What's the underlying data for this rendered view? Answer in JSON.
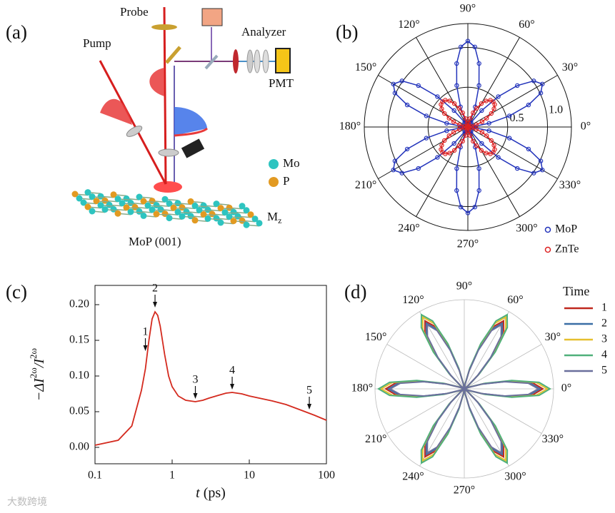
{
  "panels": {
    "a": {
      "label": "(a)",
      "probe": "Probe",
      "pump": "Pump",
      "analyzer": "Analyzer",
      "pmt": "PMT",
      "mo": "Mo",
      "p": "P",
      "m": "M",
      "m_sub": "z",
      "sample": "MoP (001)"
    },
    "b": {
      "label": "(b)",
      "type": "polar",
      "rlim": [
        0,
        1.3
      ],
      "rticks": [
        0.5,
        {
          "value": 1,
          "label": "1.0"
        }
      ],
      "angleticks": [
        {
          "value": 0,
          "label": "0°"
        },
        {
          "value": 30,
          "label": "30°"
        },
        {
          "value": 60,
          "label": "60°"
        },
        {
          "value": 90,
          "label": "90°"
        },
        {
          "value": 120,
          "label": "120°"
        },
        {
          "value": 150,
          "label": "150°"
        },
        {
          "value": 180,
          "label": "180°"
        },
        {
          "value": 210,
          "label": "210°"
        },
        {
          "value": 240,
          "label": "240°"
        },
        {
          "value": 270,
          "label": "270°"
        },
        {
          "value": 300,
          "label": "300°"
        },
        {
          "value": 330,
          "label": "330°"
        }
      ],
      "angles": [
        0,
        5,
        10,
        15,
        20,
        25,
        30,
        35,
        40,
        45,
        50,
        55,
        60,
        65,
        70,
        75,
        80,
        85,
        90,
        95,
        100,
        105,
        110,
        115,
        120,
        125,
        130,
        135,
        140,
        145,
        150,
        155,
        160,
        165,
        170,
        175,
        180,
        185,
        190,
        195,
        200,
        205,
        210,
        215,
        220,
        225,
        230,
        235,
        240,
        245,
        250,
        255,
        260,
        265,
        270,
        275,
        280,
        285,
        290,
        295,
        300,
        305,
        310,
        315,
        320,
        325,
        330,
        335,
        340,
        345,
        350,
        355
      ],
      "series": [
        {
          "name": "MoP",
          "color": "#2233bb",
          "values": [
            0,
            0.07,
            0.27,
            0.54,
            0.81,
            1.01,
            1.08,
            1.01,
            0.81,
            0.54,
            0.27,
            0.07,
            0,
            0.07,
            0.27,
            0.54,
            0.81,
            1.01,
            1.08,
            1.01,
            0.81,
            0.54,
            0.27,
            0.07,
            0,
            0.07,
            0.27,
            0.54,
            0.81,
            1.01,
            1.08,
            1.01,
            0.81,
            0.54,
            0.27,
            0.07,
            0,
            0.07,
            0.27,
            0.54,
            0.81,
            1.01,
            1.08,
            1.01,
            0.81,
            0.54,
            0.27,
            0.07,
            0,
            0.07,
            0.27,
            0.54,
            0.81,
            1.01,
            1.08,
            1.01,
            0.81,
            0.54,
            0.27,
            0.07,
            0,
            0.07,
            0.27,
            0.54,
            0.81,
            1.01,
            1.08,
            1.01,
            0.81,
            0.54,
            0.27,
            0.07
          ]
        },
        {
          "name": "ZnTe",
          "color": "#dd2222",
          "values": [
            0,
            0.01,
            0.05,
            0.11,
            0.19,
            0.26,
            0.34,
            0.4,
            0.44,
            0.45,
            0.44,
            0.4,
            0.34,
            0.26,
            0.19,
            0.11,
            0.05,
            0.01,
            0,
            0.01,
            0.05,
            0.11,
            0.19,
            0.26,
            0.34,
            0.4,
            0.44,
            0.45,
            0.44,
            0.4,
            0.34,
            0.26,
            0.19,
            0.11,
            0.05,
            0.01,
            0,
            0.01,
            0.05,
            0.11,
            0.19,
            0.26,
            0.34,
            0.4,
            0.44,
            0.45,
            0.44,
            0.4,
            0.34,
            0.26,
            0.19,
            0.11,
            0.05,
            0.01,
            0,
            0.01,
            0.05,
            0.11,
            0.19,
            0.26,
            0.34,
            0.4,
            0.44,
            0.45,
            0.44,
            0.4,
            0.34,
            0.26,
            0.19,
            0.11,
            0.05,
            0.01
          ]
        }
      ]
    },
    "c": {
      "label": "(c)",
      "type": "line",
      "xscale": "log",
      "color": "#d42a1e",
      "xlim": [
        0.1,
        100
      ],
      "xticks": [
        0.1,
        1,
        10,
        100
      ],
      "ylim": [
        -0.023,
        0.227
      ],
      "yticks": [
        {
          "value": 0,
          "label": "0.00"
        },
        0.05,
        {
          "value": 0.1,
          "label": "0.10"
        },
        0.15,
        {
          "value": 0.2,
          "label": "0.20"
        }
      ],
      "ylabel": [
        "−ΔI",
        "2ω",
        "/I",
        "2ω"
      ],
      "xlabel": [
        "t",
        " (ps)"
      ],
      "x": [
        0.1,
        0.2,
        0.3,
        0.4,
        0.45,
        0.5,
        0.55,
        0.6,
        0.65,
        0.7,
        0.8,
        0.9,
        1,
        1.2,
        1.5,
        2,
        2.5,
        3,
        4,
        5,
        6,
        8,
        10,
        20,
        30,
        50,
        70,
        100
      ],
      "values": [
        0.003,
        0.01,
        0.03,
        0.08,
        0.11,
        0.15,
        0.18,
        0.19,
        0.185,
        0.17,
        0.13,
        0.1,
        0.085,
        0.072,
        0.066,
        0.064,
        0.066,
        0.069,
        0.073,
        0.076,
        0.077,
        0.075,
        0.072,
        0.065,
        0.06,
        0.051,
        0.045,
        0.038
      ],
      "annotations": [
        {
          "text": "1",
          "x": 0.45,
          "y": 0.135
        },
        {
          "text": "2",
          "x": 0.6,
          "y": 0.196
        },
        {
          "text": "3",
          "x": 2,
          "y": 0.068
        },
        {
          "text": "4",
          "x": 6,
          "y": 0.081
        },
        {
          "text": "5",
          "x": 60,
          "y": 0.053
        }
      ]
    },
    "d": {
      "label": "(d)",
      "type": "polar",
      "legend_title": "Time",
      "rlim": [
        0,
        1
      ],
      "angleticks": [
        {
          "value": 0,
          "label": "0°"
        },
        {
          "value": 30,
          "label": "30°"
        },
        {
          "value": 60,
          "label": "60°"
        },
        {
          "value": 90,
          "label": "90°"
        },
        {
          "value": 120,
          "label": "120°"
        },
        {
          "value": 150,
          "label": "150°"
        },
        {
          "value": 180,
          "label": "180°"
        },
        {
          "value": 210,
          "label": "210°"
        },
        {
          "value": 240,
          "label": "240°"
        },
        {
          "value": 270,
          "label": "270°"
        },
        {
          "value": 300,
          "label": "300°"
        },
        {
          "value": 330,
          "label": "330°"
        }
      ],
      "angles": [
        0,
        5,
        10,
        15,
        20,
        25,
        30,
        35,
        40,
        45,
        50,
        55,
        60,
        65,
        70,
        75,
        80,
        85,
        90,
        95,
        100,
        105,
        110,
        115,
        120,
        125,
        130,
        135,
        140,
        145,
        150,
        155,
        160,
        165,
        170,
        175,
        180,
        185,
        190,
        195,
        200,
        205,
        210,
        215,
        220,
        225,
        230,
        235,
        240,
        245,
        250,
        255,
        260,
        265,
        270,
        275,
        280,
        285,
        290,
        295,
        300,
        305,
        310,
        315,
        320,
        325,
        330,
        335,
        340,
        345,
        350,
        355
      ],
      "series": [
        {
          "name": "1",
          "color": "#c0281e",
          "values": [
            0.88,
            0.77,
            0.49,
            0.22,
            0.05,
            0,
            0,
            0,
            0.05,
            0.22,
            0.49,
            0.77,
            0.88,
            0.77,
            0.49,
            0.22,
            0.05,
            0,
            0,
            0,
            0.05,
            0.22,
            0.49,
            0.77,
            0.88,
            0.77,
            0.49,
            0.22,
            0.05,
            0,
            0,
            0,
            0.05,
            0.22,
            0.49,
            0.77,
            0.88,
            0.77,
            0.49,
            0.22,
            0.05,
            0,
            0,
            0,
            0.05,
            0.22,
            0.49,
            0.77,
            0.88,
            0.77,
            0.49,
            0.22,
            0.05,
            0,
            0,
            0,
            0.05,
            0.22,
            0.49,
            0.77,
            0.88,
            0.77,
            0.49,
            0.22,
            0.05,
            0,
            0,
            0,
            0.05,
            0.22,
            0.49,
            0.77
          ]
        },
        {
          "name": "2",
          "color": "#3a6ea5",
          "values": [
            0.85,
            0.74,
            0.48,
            0.21,
            0.05,
            0,
            0,
            0,
            0.05,
            0.21,
            0.48,
            0.74,
            0.85,
            0.74,
            0.48,
            0.21,
            0.05,
            0,
            0,
            0,
            0.05,
            0.21,
            0.48,
            0.74,
            0.85,
            0.74,
            0.48,
            0.21,
            0.05,
            0,
            0,
            0,
            0.05,
            0.21,
            0.48,
            0.74,
            0.85,
            0.74,
            0.48,
            0.21,
            0.05,
            0,
            0,
            0,
            0.05,
            0.21,
            0.48,
            0.74,
            0.85,
            0.74,
            0.48,
            0.21,
            0.05,
            0,
            0,
            0,
            0.05,
            0.21,
            0.48,
            0.74,
            0.85,
            0.74,
            0.48,
            0.21,
            0.05,
            0,
            0,
            0,
            0.05,
            0.21,
            0.48,
            0.74
          ]
        },
        {
          "name": "3",
          "color": "#e6bf2e",
          "values": [
            0.93,
            0.81,
            0.52,
            0.23,
            0.06,
            0,
            0,
            0,
            0.06,
            0.23,
            0.52,
            0.81,
            0.93,
            0.81,
            0.52,
            0.23,
            0.06,
            0,
            0,
            0,
            0.06,
            0.23,
            0.52,
            0.81,
            0.93,
            0.81,
            0.52,
            0.23,
            0.06,
            0,
            0,
            0,
            0.06,
            0.23,
            0.52,
            0.81,
            0.93,
            0.81,
            0.52,
            0.23,
            0.06,
            0,
            0,
            0,
            0.06,
            0.23,
            0.52,
            0.81,
            0.93,
            0.81,
            0.52,
            0.23,
            0.06,
            0,
            0,
            0,
            0.06,
            0.23,
            0.52,
            0.81,
            0.93,
            0.81,
            0.52,
            0.23,
            0.06,
            0,
            0,
            0,
            0.06,
            0.23,
            0.52,
            0.81
          ]
        },
        {
          "name": "4",
          "color": "#4fb07a",
          "values": [
            0.96,
            0.84,
            0.54,
            0.24,
            0.06,
            0,
            0,
            0,
            0.06,
            0.24,
            0.54,
            0.84,
            0.96,
            0.84,
            0.54,
            0.24,
            0.06,
            0,
            0,
            0,
            0.06,
            0.24,
            0.54,
            0.84,
            0.96,
            0.84,
            0.54,
            0.24,
            0.06,
            0,
            0,
            0,
            0.06,
            0.24,
            0.54,
            0.84,
            0.96,
            0.84,
            0.54,
            0.24,
            0.06,
            0,
            0,
            0,
            0.06,
            0.24,
            0.54,
            0.84,
            0.96,
            0.84,
            0.54,
            0.24,
            0.06,
            0,
            0,
            0,
            0.06,
            0.24,
            0.54,
            0.84,
            0.96,
            0.84,
            0.54,
            0.24,
            0.06,
            0,
            0,
            0,
            0.06,
            0.24,
            0.54,
            0.84
          ]
        },
        {
          "name": "5",
          "color": "#6a6f9c",
          "values": [
            0.83,
            0.72,
            0.46,
            0.21,
            0.05,
            0,
            0,
            0,
            0.05,
            0.21,
            0.46,
            0.72,
            0.83,
            0.72,
            0.46,
            0.21,
            0.05,
            0,
            0,
            0,
            0.05,
            0.21,
            0.46,
            0.72,
            0.83,
            0.72,
            0.46,
            0.21,
            0.05,
            0,
            0,
            0,
            0.05,
            0.21,
            0.46,
            0.72,
            0.83,
            0.72,
            0.46,
            0.21,
            0.05,
            0,
            0,
            0,
            0.05,
            0.21,
            0.46,
            0.72,
            0.83,
            0.72,
            0.46,
            0.21,
            0.05,
            0,
            0,
            0,
            0.05,
            0.21,
            0.46,
            0.72,
            0.83,
            0.72,
            0.46,
            0.21,
            0.05,
            0,
            0,
            0,
            0.05,
            0.21,
            0.46,
            0.72
          ]
        }
      ]
    }
  },
  "watermark": "大数跨境"
}
